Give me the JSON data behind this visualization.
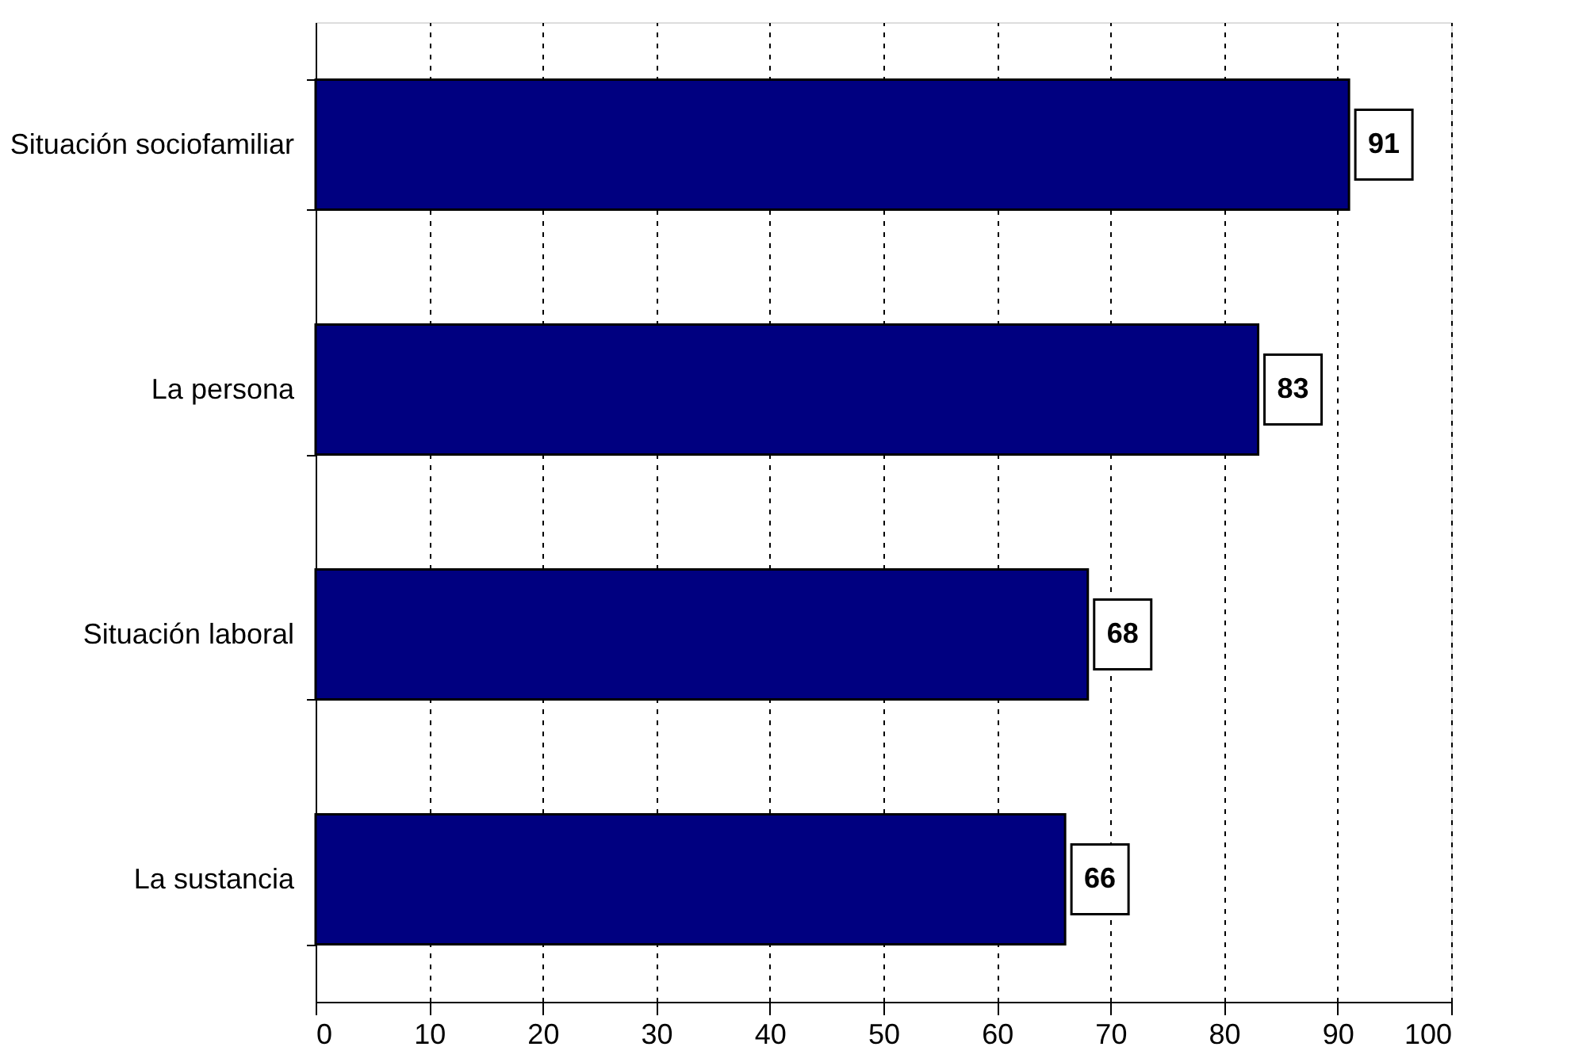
{
  "chart_data": {
    "type": "bar",
    "orientation": "horizontal",
    "categories": [
      "Situación sociofamiliar",
      "La persona",
      "Situación laboral",
      "La sustancia"
    ],
    "values": [
      91,
      83,
      68,
      66
    ],
    "color": "#000080",
    "data_labels": true,
    "xlim": [
      0,
      100
    ],
    "xticks": [
      0,
      10,
      20,
      30,
      40,
      50,
      60,
      70,
      80,
      90,
      100
    ],
    "grid": "x"
  }
}
